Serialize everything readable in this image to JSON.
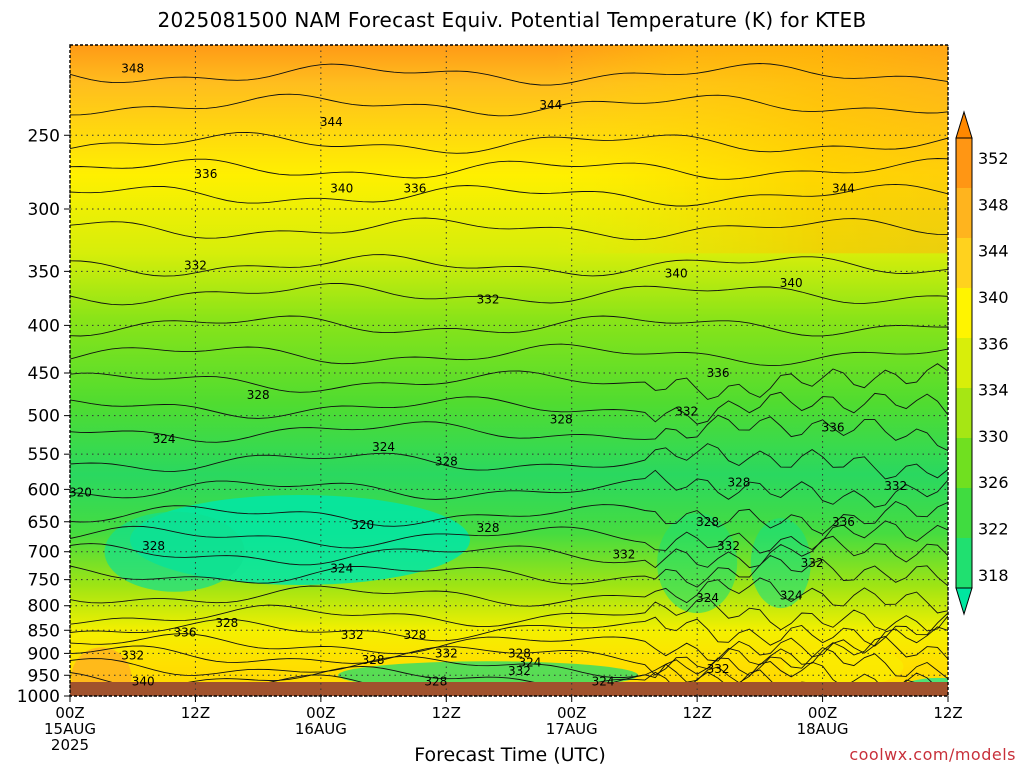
{
  "title": "2025081500 NAM Forecast Equiv. Potential Temperature (K) for KTEB",
  "xlabel": "Forecast Time (UTC)",
  "credit": "coolwx.com/models",
  "chart_data": {
    "type": "heatmap",
    "variable": "Equivalent potential temperature",
    "units": "K",
    "y_axis": {
      "scale": "log",
      "inverted": true,
      "range": [
        1000,
        200
      ],
      "ticks": [
        250,
        300,
        350,
        400,
        450,
        500,
        550,
        600,
        650,
        700,
        750,
        800,
        850,
        900,
        950,
        1000
      ]
    },
    "x_axis": {
      "range_hours": [
        0,
        84
      ],
      "ticks": [
        {
          "hour": 0,
          "line1": "00Z",
          "line2": "15AUG",
          "line3": "2025"
        },
        {
          "hour": 12,
          "line1": "12Z",
          "line2": "",
          "line3": ""
        },
        {
          "hour": 24,
          "line1": "00Z",
          "line2": "16AUG",
          "line3": ""
        },
        {
          "hour": 36,
          "line1": "12Z",
          "line2": "",
          "line3": ""
        },
        {
          "hour": 48,
          "line1": "00Z",
          "line2": "17AUG",
          "line3": ""
        },
        {
          "hour": 60,
          "line1": "12Z",
          "line2": "",
          "line3": ""
        },
        {
          "hour": 72,
          "line1": "00Z",
          "line2": "18AUG",
          "line3": ""
        },
        {
          "hour": 84,
          "line1": "12Z",
          "line2": "",
          "line3": ""
        }
      ]
    },
    "grid": true,
    "colorbar": {
      "placement": "right",
      "levels": [
        318,
        322,
        326,
        330,
        334,
        336,
        340,
        344,
        348,
        352
      ],
      "labels": [
        "352",
        "348",
        "344",
        "340",
        "336",
        "334",
        "330",
        "326",
        "322",
        "318"
      ],
      "colors": [
        "#00e6a0",
        "#20e070",
        "#40dc40",
        "#70e020",
        "#a6e614",
        "#d8ee0a",
        "#fff400",
        "#ffd21e",
        "#ffb41e",
        "#ff9614",
        "#ff8800"
      ]
    },
    "surface_color": "#a0522d",
    "contour_labels": [
      {
        "text": "348",
        "hour": 6,
        "p": 212
      },
      {
        "text": "344",
        "hour": 25,
        "p": 242
      },
      {
        "text": "344",
        "hour": 46,
        "p": 232
      },
      {
        "text": "344",
        "hour": 74,
        "p": 285
      },
      {
        "text": "336",
        "hour": 13,
        "p": 275
      },
      {
        "text": "340",
        "hour": 26,
        "p": 285
      },
      {
        "text": "336",
        "hour": 33,
        "p": 285
      },
      {
        "text": "332",
        "hour": 12,
        "p": 345
      },
      {
        "text": "340",
        "hour": 58,
        "p": 352
      },
      {
        "text": "340",
        "hour": 69,
        "p": 360
      },
      {
        "text": "332",
        "hour": 40,
        "p": 375
      },
      {
        "text": "328",
        "hour": 18,
        "p": 475
      },
      {
        "text": "336",
        "hour": 62,
        "p": 450
      },
      {
        "text": "332",
        "hour": 59,
        "p": 495
      },
      {
        "text": "328",
        "hour": 47,
        "p": 505
      },
      {
        "text": "336",
        "hour": 73,
        "p": 515
      },
      {
        "text": "324",
        "hour": 9,
        "p": 530
      },
      {
        "text": "324",
        "hour": 30,
        "p": 540
      },
      {
        "text": "328",
        "hour": 36,
        "p": 560
      },
      {
        "text": "328",
        "hour": 64,
        "p": 590
      },
      {
        "text": "332",
        "hour": 79,
        "p": 595
      },
      {
        "text": "320",
        "hour": 1,
        "p": 605
      },
      {
        "text": "320",
        "hour": 28,
        "p": 655
      },
      {
        "text": "328",
        "hour": 40,
        "p": 660
      },
      {
        "text": "328",
        "hour": 61,
        "p": 650
      },
      {
        "text": "336",
        "hour": 74,
        "p": 650
      },
      {
        "text": "328",
        "hour": 8,
        "p": 690
      },
      {
        "text": "332",
        "hour": 53,
        "p": 705
      },
      {
        "text": "332",
        "hour": 63,
        "p": 690
      },
      {
        "text": "332",
        "hour": 71,
        "p": 720
      },
      {
        "text": "324",
        "hour": 26,
        "p": 730
      },
      {
        "text": "324",
        "hour": 61,
        "p": 785
      },
      {
        "text": "324",
        "hour": 69,
        "p": 780
      },
      {
        "text": "328",
        "hour": 15,
        "p": 835
      },
      {
        "text": "336",
        "hour": 11,
        "p": 855
      },
      {
        "text": "332",
        "hour": 27,
        "p": 860
      },
      {
        "text": "328",
        "hour": 33,
        "p": 860
      },
      {
        "text": "332",
        "hour": 6,
        "p": 905
      },
      {
        "text": "328",
        "hour": 29,
        "p": 915
      },
      {
        "text": "332",
        "hour": 36,
        "p": 900
      },
      {
        "text": "328",
        "hour": 43,
        "p": 900
      },
      {
        "text": "324",
        "hour": 44,
        "p": 920
      },
      {
        "text": "332",
        "hour": 43,
        "p": 940
      },
      {
        "text": "332",
        "hour": 62,
        "p": 935
      },
      {
        "text": "340",
        "hour": 7,
        "p": 965
      },
      {
        "text": "328",
        "hour": 35,
        "p": 965
      },
      {
        "text": "324",
        "hour": 51,
        "p": 965
      }
    ]
  }
}
